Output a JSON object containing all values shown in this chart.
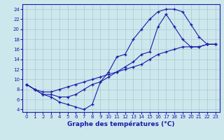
{
  "xlabel": "Graphe des températures (°C)",
  "bg_color": "#cde8ed",
  "grid_color": "#a8c8d0",
  "line_color": "#1a1aaa",
  "ylim": [
    3.5,
    25.0
  ],
  "xlim": [
    -0.5,
    23.5
  ],
  "yticks": [
    4,
    6,
    8,
    10,
    12,
    14,
    16,
    18,
    20,
    22,
    24
  ],
  "xticks": [
    0,
    1,
    2,
    3,
    4,
    5,
    6,
    7,
    8,
    9,
    10,
    11,
    12,
    13,
    14,
    15,
    16,
    17,
    18,
    19,
    20,
    21,
    22,
    23
  ],
  "line1_x": [
    0,
    1,
    2,
    3,
    4,
    5,
    6,
    7,
    8,
    9,
    10,
    11,
    12,
    13,
    14,
    15,
    16,
    17,
    18,
    19,
    20,
    21,
    22,
    23
  ],
  "line1_y": [
    9,
    8,
    7,
    6.5,
    5.5,
    5.0,
    4.5,
    4.0,
    5.0,
    9.5,
    11.5,
    14.5,
    15.0,
    18.0,
    20.0,
    22.0,
    23.5,
    24.0,
    24.0,
    23.5,
    21.0,
    18.5,
    17.0,
    17.0
  ],
  "line2_x": [
    0,
    1,
    2,
    3,
    4,
    5,
    6,
    7,
    8,
    9,
    10,
    11,
    12,
    13,
    14,
    15,
    16,
    17,
    18,
    19,
    20,
    21,
    22,
    23
  ],
  "line2_y": [
    9,
    8,
    7,
    7.0,
    6.5,
    6.5,
    7.0,
    8.0,
    9.0,
    9.5,
    10.5,
    11.5,
    12.5,
    13.5,
    15.0,
    15.5,
    20.5,
    23.0,
    20.5,
    18.0,
    16.5,
    16.5,
    17.0,
    17.0
  ],
  "line3_x": [
    0,
    1,
    2,
    3,
    4,
    5,
    6,
    7,
    8,
    9,
    10,
    11,
    12,
    13,
    14,
    15,
    16,
    17,
    18,
    19,
    20,
    21,
    22,
    23
  ],
  "line3_y": [
    9,
    8,
    7.5,
    7.5,
    8.0,
    8.5,
    9.0,
    9.5,
    10.0,
    10.5,
    11.0,
    11.5,
    12.0,
    12.5,
    13.0,
    14.0,
    15.0,
    15.5,
    16.0,
    16.5,
    16.5,
    16.5,
    17.0,
    17.0
  ]
}
